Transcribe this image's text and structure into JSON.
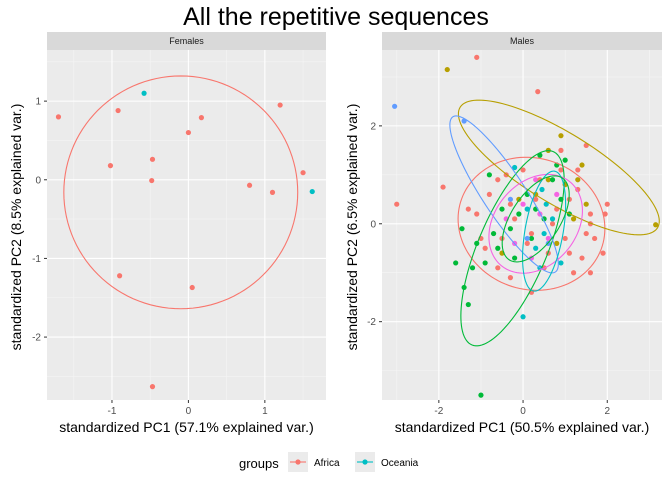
{
  "title": "All the repetitive sequences",
  "colors": {
    "panel_bg": "#ebebeb",
    "grid_major": "#ffffff",
    "grid_minor": "#f5f5f5",
    "strip_bg": "#d9d9d9",
    "africa": "#f8766d",
    "oceania": "#00bfc4",
    "g_olive": "#b79f00",
    "g_green": "#00ba38",
    "g_purple": "#619cff",
    "g_magenta": "#f564e3",
    "g_cyan": "#00bfc4"
  },
  "legend": {
    "title": "groups",
    "position": "bottom",
    "items": [
      {
        "label": "Africa",
        "color": "#f8766d"
      },
      {
        "label": "Oceania",
        "color": "#00bfc4"
      }
    ]
  },
  "chart_data": [
    {
      "type": "scatter",
      "facet": "Females",
      "xlabel": "standardized PC1 (57.1% explained var.)",
      "ylabel": "standardized PC2 (8.5% explained var.)",
      "xlim": [
        -1.85,
        1.8
      ],
      "ylim": [
        -2.8,
        1.65
      ],
      "xticks": [
        -1,
        0,
        1
      ],
      "yticks": [
        -2,
        -1,
        0,
        1
      ],
      "grid": true,
      "series": [
        {
          "name": "Africa",
          "color": "#f8766d",
          "points": [
            [
              -1.7,
              0.8
            ],
            [
              -0.92,
              0.88
            ],
            [
              -1.02,
              0.18
            ],
            [
              -0.9,
              -1.22
            ],
            [
              -0.47,
              0.26
            ],
            [
              -0.48,
              -0.01
            ],
            [
              0.0,
              0.6
            ],
            [
              0.17,
              0.79
            ],
            [
              0.05,
              -1.37
            ],
            [
              -0.47,
              -2.63
            ],
            [
              0.8,
              -0.07
            ],
            [
              1.1,
              -0.16
            ],
            [
              1.2,
              0.95
            ],
            [
              1.5,
              0.09
            ]
          ]
        },
        {
          "name": "Oceania",
          "color": "#00bfc4",
          "points": [
            [
              -0.58,
              1.1
            ],
            [
              1.62,
              -0.15
            ]
          ]
        }
      ],
      "ellipses": [
        {
          "color": "#f8766d",
          "cx": -0.1,
          "cy": -0.16,
          "rx": 1.53,
          "ry": 1.48,
          "angle": 0
        }
      ]
    },
    {
      "type": "scatter",
      "facet": "Males",
      "xlabel": "standardized PC1 (50.5% explained var.)",
      "ylabel": "standardized PC2 (6.5% explained var.)",
      "xlim": [
        -3.35,
        3.3
      ],
      "ylim": [
        -3.6,
        3.55
      ],
      "xticks": [
        -2,
        0,
        2
      ],
      "yticks": [
        -2,
        0,
        2
      ],
      "grid": true,
      "series": [
        {
          "name": "Africa",
          "color": "#f8766d",
          "points": [
            [
              -3.0,
              0.4
            ],
            [
              -1.9,
              0.75
            ],
            [
              -1.3,
              0.3
            ],
            [
              -1.1,
              3.4
            ],
            [
              -0.5,
              -0.3
            ],
            [
              -0.3,
              0.4
            ],
            [
              0.1,
              -0.4
            ],
            [
              0.3,
              0.5
            ],
            [
              0.35,
              2.7
            ],
            [
              0.6,
              -0.6
            ],
            [
              0.8,
              0.3
            ],
            [
              0.9,
              1.5
            ],
            [
              1.1,
              0.5
            ],
            [
              1.2,
              -1.0
            ],
            [
              1.3,
              1.1
            ],
            [
              1.5,
              -0.2
            ],
            [
              1.6,
              0.0
            ],
            [
              1.6,
              0.2
            ],
            [
              1.7,
              -0.3
            ],
            [
              1.9,
              -0.6
            ],
            [
              1.95,
              0.2
            ],
            [
              2.0,
              0.4
            ],
            [
              1.5,
              1.6
            ],
            [
              1.3,
              0.7
            ],
            [
              1.0,
              -0.3
            ],
            [
              0.5,
              -0.9
            ],
            [
              0.2,
              -1.4
            ],
            [
              -0.3,
              -1.1
            ],
            [
              -0.6,
              -0.9
            ],
            [
              -0.9,
              -0.5
            ],
            [
              -1.0,
              -0.3
            ],
            [
              -0.8,
              0.6
            ],
            [
              -0.6,
              0.9
            ],
            [
              -0.4,
              1.0
            ],
            [
              0.0,
              1.1
            ],
            [
              0.4,
              0.9
            ],
            [
              0.9,
              1.1
            ],
            [
              1.1,
              -0.6
            ],
            [
              1.4,
              -0.7
            ],
            [
              1.6,
              -1.0
            ],
            [
              -1.1,
              0.2
            ],
            [
              -0.2,
              0.1
            ],
            [
              0.7,
              0.0
            ],
            [
              0.2,
              -0.2
            ]
          ]
        },
        {
          "name": "Oceania",
          "color": "#00bfc4",
          "points": [
            [
              0.0,
              -1.9
            ],
            [
              0.5,
              -0.2
            ],
            [
              0.7,
              0.1
            ],
            [
              0.55,
              0.4
            ],
            [
              0.3,
              -0.5
            ],
            [
              0.45,
              0.7
            ],
            [
              -0.2,
              1.15
            ],
            [
              0.1,
              0.3
            ],
            [
              0.9,
              -0.8
            ],
            [
              0.4,
              -0.9
            ]
          ]
        }
      ],
      "ellipses": [
        {
          "color": "#f8766d",
          "cx": 0.2,
          "cy": 0.0,
          "rx": 1.75,
          "ry": 1.35,
          "angle": -8
        },
        {
          "color": "#b79f00",
          "cx": 0.85,
          "cy": 1.15,
          "rx": 2.65,
          "ry": 0.75,
          "angle": -27
        },
        {
          "color": "#00ba38",
          "cx": -0.25,
          "cy": -0.5,
          "rx": 2.2,
          "ry": 0.8,
          "angle": 63
        },
        {
          "color": "#619cff",
          "cx": -0.45,
          "cy": 0.6,
          "rx": 2.0,
          "ry": 0.48,
          "angle": -52
        },
        {
          "color": "#f564e3",
          "cx": 0.3,
          "cy": 0.0,
          "rx": 1.2,
          "ry": 0.9,
          "angle": 35
        },
        {
          "color": "#00bfc4",
          "cx": 0.5,
          "cy": -0.15,
          "rx": 1.25,
          "ry": 0.45,
          "angle": 78
        },
        {
          "color": "#00ba38",
          "cx": 0.3,
          "cy": 0.1,
          "rx": 1.05,
          "ry": 0.55,
          "angle": 50
        }
      ],
      "extra_points": [
        {
          "group_color": "#b79f00",
          "points": [
            [
              -1.8,
              3.15
            ],
            [
              3.15,
              -0.02
            ],
            [
              0.9,
              1.8
            ],
            [
              1.4,
              1.2
            ],
            [
              0.6,
              1.5
            ],
            [
              1.0,
              0.8
            ],
            [
              1.5,
              0.4
            ],
            [
              0.3,
              0.6
            ],
            [
              -0.1,
              0.5
            ],
            [
              0.6,
              0.9
            ],
            [
              1.2,
              0.1
            ],
            [
              -0.5,
              -0.6
            ],
            [
              0.8,
              -0.4
            ],
            [
              1.3,
              0.9
            ]
          ]
        },
        {
          "group_color": "#00ba38",
          "points": [
            [
              -1.6,
              -0.8
            ],
            [
              -1.4,
              -1.3
            ],
            [
              -1.3,
              -1.65
            ],
            [
              -1.2,
              -0.9
            ],
            [
              -1.1,
              -0.4
            ],
            [
              -0.9,
              -0.8
            ],
            [
              -0.7,
              -0.2
            ],
            [
              -0.5,
              0.3
            ],
            [
              -0.3,
              -0.1
            ],
            [
              -0.1,
              0.2
            ],
            [
              0.1,
              0.6
            ],
            [
              0.3,
              0.3
            ],
            [
              0.5,
              0.1
            ],
            [
              0.7,
              0.9
            ],
            [
              0.9,
              0.5
            ],
            [
              1.1,
              0.2
            ],
            [
              -0.6,
              -0.5
            ],
            [
              -0.2,
              -0.7
            ],
            [
              0.2,
              -0.3
            ],
            [
              0.8,
              1.2
            ],
            [
              1.0,
              1.3
            ],
            [
              -1.0,
              -3.5
            ],
            [
              -1.45,
              -0.1
            ],
            [
              -0.8,
              1.0
            ],
            [
              0.4,
              1.4
            ]
          ]
        },
        {
          "group_color": "#619cff",
          "points": [
            [
              -3.05,
              2.4
            ],
            [
              -1.4,
              2.1
            ],
            [
              -0.3,
              0.5
            ],
            [
              0.1,
              -0.3
            ],
            [
              0.6,
              -0.4
            ]
          ]
        },
        {
          "group_color": "#f564e3",
          "points": [
            [
              0.0,
              0.4
            ],
            [
              0.4,
              0.2
            ],
            [
              0.6,
              -0.3
            ],
            [
              -0.2,
              -0.4
            ],
            [
              0.2,
              -0.7
            ],
            [
              0.8,
              0.6
            ],
            [
              -0.4,
              0.1
            ],
            [
              0.3,
              0.9
            ]
          ]
        }
      ]
    }
  ]
}
